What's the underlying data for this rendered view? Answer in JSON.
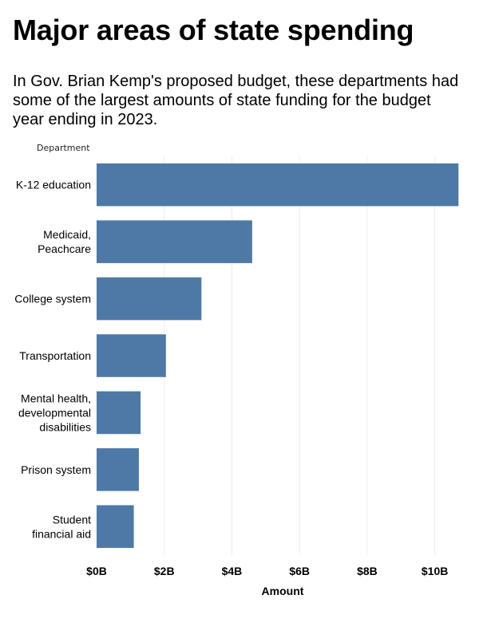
{
  "title": "Major areas of state spending",
  "subtitle": "In Gov. Brian Kemp's proposed budget, these departments had some of the largest amounts of state funding for the budget year ending in 2023.",
  "chart_data": {
    "type": "bar",
    "orientation": "horizontal",
    "categories": [
      "K-12 education",
      "Medicaid, Peachcare",
      "College system",
      "Transportation",
      "Mental health, developmental disabilities",
      "Prison system",
      "Student financial aid"
    ],
    "category_lines": [
      [
        "K-12 education"
      ],
      [
        "Medicaid,",
        "Peachcare"
      ],
      [
        "College system"
      ],
      [
        "Transportation"
      ],
      [
        "Mental health,",
        "developmental",
        "disabilities"
      ],
      [
        "Prison system"
      ],
      [
        "Student",
        "financial aid"
      ]
    ],
    "values": [
      10.7,
      4.6,
      3.1,
      2.05,
      1.3,
      1.25,
      1.1
    ],
    "unit": "billion dollars",
    "xlabel": "Amount",
    "ylabel": "Department",
    "xlim": [
      0,
      11
    ],
    "xticks": [
      0,
      2,
      4,
      6,
      8,
      10
    ],
    "xtick_labels": [
      "$0B",
      "$2B",
      "$4B",
      "$6B",
      "$8B",
      "$10B"
    ],
    "grid": "vertical",
    "bar_color": "#4e79a7",
    "grid_color": "#ececec"
  }
}
